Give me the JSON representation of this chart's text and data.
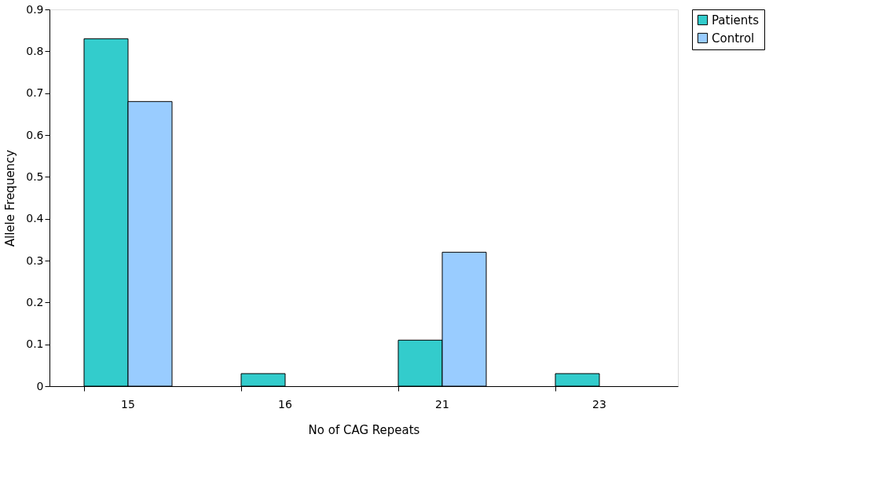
{
  "chart_data": {
    "type": "bar",
    "xlabel": "No of CAG Repeats",
    "ylabel": "Allele Frequency",
    "categories": [
      "15",
      "16",
      "21",
      "23"
    ],
    "series": [
      {
        "name": "Patients",
        "color": "#33cccc",
        "values": [
          0.83,
          0.03,
          0.11,
          0.03
        ]
      },
      {
        "name": "Control",
        "color": "#99ccff",
        "values": [
          0.68,
          null,
          0.32,
          null
        ]
      }
    ],
    "ylim": [
      0,
      0.9
    ],
    "yticks": [
      0,
      0.1,
      0.2,
      0.3,
      0.4,
      0.5,
      0.6,
      0.7,
      0.8,
      0.9
    ],
    "grid": false,
    "legend": "right"
  }
}
